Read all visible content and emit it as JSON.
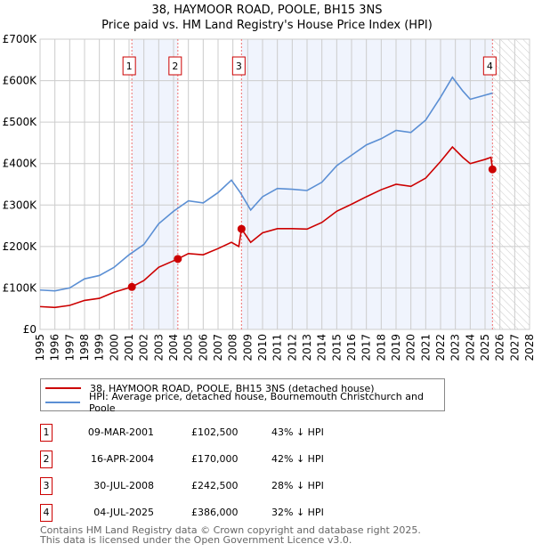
{
  "title": "38, HAYMOOR ROAD, POOLE, BH15 3NS",
  "subtitle": "Price paid vs. HM Land Registry's House Price Index (HPI)",
  "chart_data": {
    "type": "line",
    "title": "38, HAYMOOR ROAD, POOLE, BH15 3NS",
    "subtitle": "Price paid vs. HM Land Registry's House Price Index (HPI)",
    "xlim": [
      1995,
      2028
    ],
    "ylim": [
      0,
      700000
    ],
    "yticks": [
      0,
      100000,
      200000,
      300000,
      400000,
      500000,
      600000,
      700000
    ],
    "ytick_labels": [
      "£0",
      "£100K",
      "£200K",
      "£300K",
      "£400K",
      "£500K",
      "£600K",
      "£700K"
    ],
    "xticks": [
      "1995",
      "1996",
      "1997",
      "1998",
      "1999",
      "2000",
      "2001",
      "2002",
      "2003",
      "2004",
      "2005",
      "2006",
      "2007",
      "2008",
      "2009",
      "2010",
      "2011",
      "2012",
      "2013",
      "2014",
      "2015",
      "2016",
      "2017",
      "2018",
      "2019",
      "2020",
      "2021",
      "2022",
      "2023",
      "2024",
      "2025",
      "2026",
      "2027",
      "2028"
    ],
    "grid": true,
    "legend_placement": "below",
    "series": [
      {
        "name": "38, HAYMOOR ROAD, POOLE, BH15 3NS (detached house)",
        "color": "#cc0000",
        "x": [
          1995,
          1996,
          1997,
          1998,
          1999,
          2000,
          2001.19,
          2002,
          2003,
          2004.29,
          2005,
          2006,
          2007,
          2007.9,
          2008.4,
          2008.58,
          2009.2,
          2010,
          2011,
          2012,
          2013,
          2014,
          2015,
          2016,
          2017,
          2018,
          2019,
          2020,
          2021,
          2022,
          2022.8,
          2023.5,
          2024,
          2025,
          2025.4,
          2025.5
        ],
        "y": [
          55000,
          53000,
          58000,
          70000,
          75000,
          90000,
          102500,
          118000,
          150000,
          170000,
          183000,
          180000,
          195000,
          210000,
          200000,
          242500,
          210000,
          233000,
          243000,
          243000,
          242000,
          258000,
          285000,
          302000,
          320000,
          337000,
          350000,
          345000,
          365000,
          405000,
          440000,
          415000,
          400000,
          410000,
          415000,
          386000
        ]
      },
      {
        "name": "HPI: Average price, detached house, Bournemouth Christchurch and Poole",
        "color": "#5b8fd4",
        "x": [
          1995,
          1996,
          1997,
          1998,
          1999,
          2000,
          2001,
          2002,
          2003,
          2004,
          2005,
          2006,
          2007,
          2007.9,
          2008.5,
          2009.2,
          2010,
          2011,
          2012,
          2013,
          2014,
          2015,
          2016,
          2017,
          2018,
          2019,
          2020,
          2021,
          2022,
          2022.8,
          2023.5,
          2024,
          2025,
          2025.5
        ],
        "y": [
          95000,
          93000,
          100000,
          122000,
          130000,
          150000,
          180000,
          205000,
          255000,
          285000,
          310000,
          305000,
          330000,
          360000,
          330000,
          288000,
          320000,
          340000,
          338000,
          335000,
          355000,
          395000,
          420000,
          445000,
          460000,
          480000,
          475000,
          505000,
          560000,
          608000,
          575000,
          555000,
          565000,
          570000
        ]
      }
    ],
    "sales": [
      {
        "num": "1",
        "x": 2001.19,
        "price": 102500
      },
      {
        "num": "2",
        "x": 2004.29,
        "price": 170000
      },
      {
        "num": "3",
        "x": 2008.58,
        "price": 242500
      },
      {
        "num": "4",
        "x": 2025.5,
        "price": 386000
      }
    ],
    "forecast_from": 2025.5
  },
  "legend": {
    "red": "38, HAYMOOR ROAD, POOLE, BH15 3NS (detached house)",
    "blue": "HPI: Average price, detached house, Bournemouth Christchurch and Poole"
  },
  "table": [
    {
      "num": "1",
      "date": "09-MAR-2001",
      "price": "£102,500",
      "hpi": "43% ↓ HPI"
    },
    {
      "num": "2",
      "date": "16-APR-2004",
      "price": "£170,000",
      "hpi": "42% ↓ HPI"
    },
    {
      "num": "3",
      "date": "30-JUL-2008",
      "price": "£242,500",
      "hpi": "28% ↓ HPI"
    },
    {
      "num": "4",
      "date": "04-JUL-2025",
      "price": "£386,000",
      "hpi": "32% ↓ HPI"
    }
  ],
  "footer": {
    "line1": "Contains HM Land Registry data © Crown copyright and database right 2025.",
    "line2": "This data is licensed under the Open Government Licence v3.0."
  }
}
